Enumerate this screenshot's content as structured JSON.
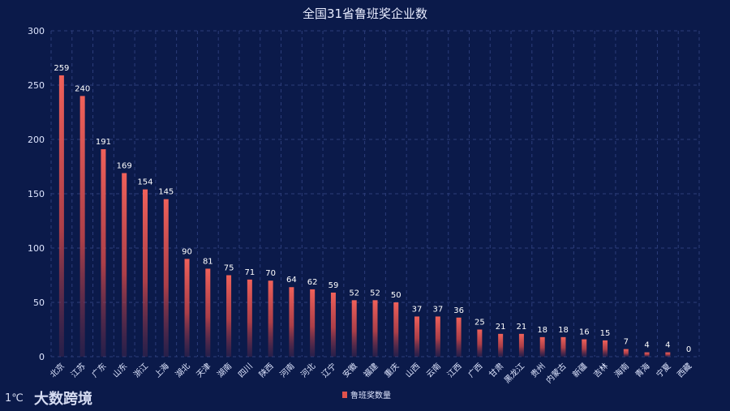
{
  "chart_data": {
    "type": "bar",
    "title": "全国31省鲁班奖企业数",
    "categories": [
      "北京",
      "江苏",
      "广东",
      "山东",
      "浙江",
      "上海",
      "湖北",
      "天津",
      "湖南",
      "四川",
      "陕西",
      "河南",
      "河北",
      "辽宁",
      "安徽",
      "福建",
      "重庆",
      "山西",
      "云南",
      "江西",
      "广西",
      "甘肃",
      "黑龙江",
      "贵州",
      "内蒙古",
      "新疆",
      "吉林",
      "海南",
      "青海",
      "宁夏",
      "西藏"
    ],
    "series": [
      {
        "name": "鲁班奖数量",
        "values": [
          259,
          240,
          191,
          169,
          154,
          145,
          90,
          81,
          75,
          71,
          70,
          64,
          62,
          59,
          52,
          52,
          50,
          37,
          37,
          36,
          25,
          21,
          21,
          18,
          18,
          16,
          15,
          7,
          4,
          4,
          0
        ],
        "color": "#e0524c"
      }
    ],
    "yticks": [
      0,
      50,
      100,
      150,
      200,
      250,
      300
    ],
    "ylim": [
      0,
      300
    ],
    "grid": true,
    "legend_position": "bottom-center"
  },
  "logo": {
    "mark": "1℃",
    "text": "大数跨境"
  }
}
